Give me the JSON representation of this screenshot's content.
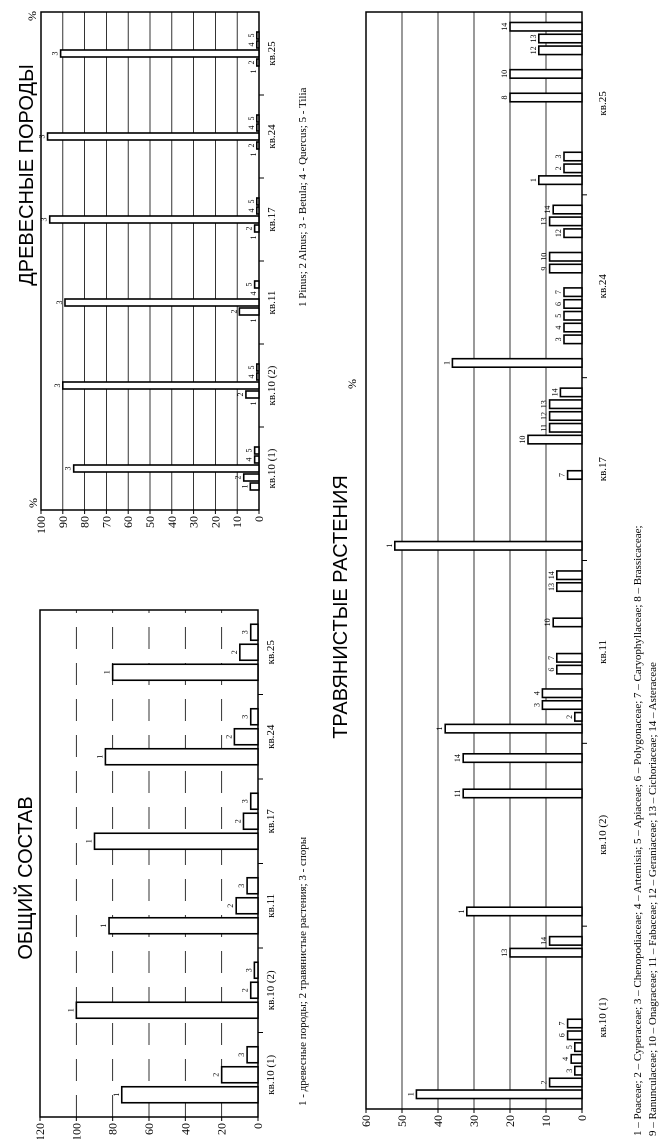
{
  "charts": {
    "total": {
      "title": "ОБЩИЙ СОСТАВ",
      "ylabel": "%",
      "ylim": [
        0,
        120
      ],
      "yticks": [
        0,
        20,
        40,
        60,
        80,
        100,
        120
      ],
      "categories": [
        "кв.10 (1)",
        "кв.10 (2)",
        "кв.11",
        "кв.17",
        "кв.24",
        "кв.25"
      ],
      "bars": [
        {
          "label": "1",
          "values": [
            75,
            100,
            82,
            90,
            84,
            80
          ]
        },
        {
          "label": "2",
          "values": [
            20,
            4,
            12,
            8,
            13,
            10
          ]
        },
        {
          "label": "3",
          "values": [
            6,
            2,
            6,
            4,
            4,
            4
          ]
        }
      ],
      "legend": "1 - древесные породы; 2    травянистые растения; 3 - споры"
    },
    "trees": {
      "title": "ДРЕВЕСНЫЕ ПОРОДЫ",
      "ylabel": "%",
      "ylim": [
        0,
        100
      ],
      "yticks": [
        0,
        10,
        20,
        30,
        40,
        50,
        60,
        70,
        80,
        90,
        100
      ],
      "categories": [
        "кв.10 (1)",
        "кв.10 (2)",
        "кв.11",
        "кв.17",
        "кв.24",
        "кв.25"
      ],
      "bars": [
        {
          "label": "1",
          "values": [
            4,
            0,
            0,
            0,
            0,
            0
          ]
        },
        {
          "label": "2",
          "values": [
            7,
            6,
            9,
            2,
            1,
            1
          ]
        },
        {
          "label": "3",
          "values": [
            85,
            90,
            89,
            96,
            97,
            91
          ]
        },
        {
          "label": "4",
          "values": [
            2,
            1,
            0,
            1,
            1,
            1
          ]
        },
        {
          "label": "5",
          "values": [
            2,
            1,
            2,
            1,
            1,
            1
          ]
        }
      ],
      "legend": "1    Pinus; 2    Alnus; 3 - Betula; 4 - Quercus; 5 - Tilia"
    },
    "herbs": {
      "title": "ТРАВЯНИСТЫЕ РАСТЕНИЯ",
      "ylabel": "%",
      "ylim": [
        0,
        60
      ],
      "yticks": [
        0,
        10,
        20,
        30,
        40,
        50,
        60
      ],
      "categories": [
        "кв.10 (1)",
        "кв.10 (2)",
        "кв.11",
        "кв.17",
        "кв.24",
        "кв.25"
      ],
      "groups": [
        {
          "labels": [
            "1",
            "2",
            "3",
            "4",
            "5",
            "6",
            "7",
            "8",
            "9",
            "10",
            "11",
            "12",
            "13",
            "14"
          ],
          "values": [
            46,
            9,
            2,
            3,
            2,
            4,
            4,
            0,
            0,
            0,
            0,
            0,
            20,
            9
          ]
        },
        {
          "labels": [
            "1",
            "2",
            "3",
            "4",
            "5",
            "6",
            "7",
            "8",
            "9",
            "10",
            "11",
            "12",
            "13",
            "14"
          ],
          "values": [
            32,
            0,
            0,
            0,
            0,
            0,
            0,
            0,
            0,
            0,
            33,
            0,
            0,
            33
          ]
        },
        {
          "labels": [
            "1",
            "2",
            "3",
            "4",
            "5",
            "6",
            "7",
            "8",
            "9",
            "10",
            "11",
            "12",
            "13",
            "14"
          ],
          "values": [
            38,
            2,
            11,
            11,
            0,
            7,
            7,
            0,
            0,
            8,
            0,
            0,
            7,
            7
          ]
        },
        {
          "labels": [
            "1",
            "2",
            "3",
            "4",
            "5",
            "6",
            "7",
            "8",
            "9",
            "10",
            "11",
            "12",
            "13",
            "14"
          ],
          "values": [
            52,
            0,
            0,
            0,
            0,
            0,
            4,
            0,
            0,
            15,
            9,
            9,
            9,
            6
          ]
        },
        {
          "labels": [
            "1",
            "2",
            "3",
            "4",
            "5",
            "6",
            "7",
            "8",
            "9",
            "10",
            "11",
            "12",
            "13",
            "14"
          ],
          "values": [
            36,
            0,
            5,
            5,
            5,
            5,
            5,
            0,
            9,
            9,
            0,
            5,
            9,
            8
          ]
        },
        {
          "labels": [
            "1",
            "2",
            "3",
            "4",
            "5",
            "6",
            "7",
            "8",
            "9",
            "10",
            "11",
            "12",
            "13",
            "14"
          ],
          "values": [
            12,
            5,
            5,
            0,
            0,
            0,
            0,
            20,
            0,
            20,
            0,
            12,
            12,
            20
          ]
        }
      ],
      "legend": [
        "1 – Poaceae; 2 – Cyperaceae; 3 – Chenopodiaceae; 4 – Artemisia; 5 – Apiaceae; 6 – Polygonaceae; 7 – Caryophyllaceae; 8 – Brassicaceae;",
        "9 – Ranunculaceae; 10 – Onagraceae; 11 – Fabaceae; 12 – Geraniaceae; 13 – Cichoriaceae; 14 – Asteraceae"
      ]
    }
  },
  "chart_data": [
    {
      "type": "bar",
      "title": "ОБЩИЙ СОСТАВ",
      "ylabel": "%",
      "ylim": [
        0,
        120
      ],
      "categories": [
        "кв.10 (1)",
        "кв.10 (2)",
        "кв.11",
        "кв.17",
        "кв.24",
        "кв.25"
      ],
      "series": [
        {
          "name": "1 - древесные породы",
          "values": [
            75,
            100,
            82,
            90,
            84,
            80
          ]
        },
        {
          "name": "2 - травянистые растения",
          "values": [
            20,
            4,
            12,
            8,
            13,
            10
          ]
        },
        {
          "name": "3 - споры",
          "values": [
            6,
            2,
            6,
            4,
            4,
            4
          ]
        }
      ]
    },
    {
      "type": "bar",
      "title": "ДРЕВЕСНЫЕ ПОРОДЫ",
      "ylabel": "%",
      "ylim": [
        0,
        100
      ],
      "categories": [
        "кв.10 (1)",
        "кв.10 (2)",
        "кв.11",
        "кв.17",
        "кв.24",
        "кв.25"
      ],
      "series": [
        {
          "name": "1 - Pinus",
          "values": [
            4,
            0,
            0,
            0,
            0,
            0
          ]
        },
        {
          "name": "2 - Alnus",
          "values": [
            7,
            6,
            9,
            2,
            1,
            1
          ]
        },
        {
          "name": "3 - Betula",
          "values": [
            85,
            90,
            89,
            96,
            97,
            91
          ]
        },
        {
          "name": "4 - Quercus",
          "values": [
            2,
            1,
            0,
            1,
            1,
            1
          ]
        },
        {
          "name": "5 - Tilia",
          "values": [
            2,
            1,
            2,
            1,
            1,
            1
          ]
        }
      ]
    },
    {
      "type": "bar",
      "title": "ТРАВЯНИСТЫЕ РАСТЕНИЯ",
      "ylabel": "%",
      "ylim": [
        0,
        60
      ],
      "categories": [
        "кв.10 (1)",
        "кв.10 (2)",
        "кв.11",
        "кв.17",
        "кв.24",
        "кв.25"
      ],
      "series": [
        {
          "name": "1 - Poaceae",
          "values": [
            46,
            32,
            38,
            52,
            36,
            12
          ]
        },
        {
          "name": "2 - Cyperaceae",
          "values": [
            9,
            0,
            2,
            0,
            0,
            5
          ]
        },
        {
          "name": "3 - Chenopodiaceae",
          "values": [
            2,
            0,
            11,
            0,
            5,
            5
          ]
        },
        {
          "name": "4 - Artemisia",
          "values": [
            3,
            0,
            11,
            0,
            5,
            0
          ]
        },
        {
          "name": "5 - Apiaceae",
          "values": [
            2,
            0,
            0,
            0,
            5,
            0
          ]
        },
        {
          "name": "6 - Polygonaceae",
          "values": [
            4,
            0,
            7,
            0,
            5,
            0
          ]
        },
        {
          "name": "7 - Caryophyllaceae",
          "values": [
            4,
            0,
            7,
            4,
            5,
            0
          ]
        },
        {
          "name": "8 - Brassicaceae",
          "values": [
            0,
            0,
            0,
            0,
            0,
            20
          ]
        },
        {
          "name": "9 - Ranunculaceae",
          "values": [
            0,
            0,
            0,
            0,
            9,
            0
          ]
        },
        {
          "name": "10 - Onagraceae",
          "values": [
            0,
            0,
            8,
            15,
            9,
            20
          ]
        },
        {
          "name": "11 - Fabaceae",
          "values": [
            0,
            33,
            0,
            9,
            0,
            0
          ]
        },
        {
          "name": "12 - Geraniaceae",
          "values": [
            0,
            0,
            0,
            9,
            5,
            12
          ]
        },
        {
          "name": "13 - Cichoriaceae",
          "values": [
            20,
            0,
            7,
            9,
            9,
            12
          ]
        },
        {
          "name": "14 - Asteraceae",
          "values": [
            9,
            33,
            7,
            6,
            8,
            20
          ]
        }
      ]
    }
  ]
}
